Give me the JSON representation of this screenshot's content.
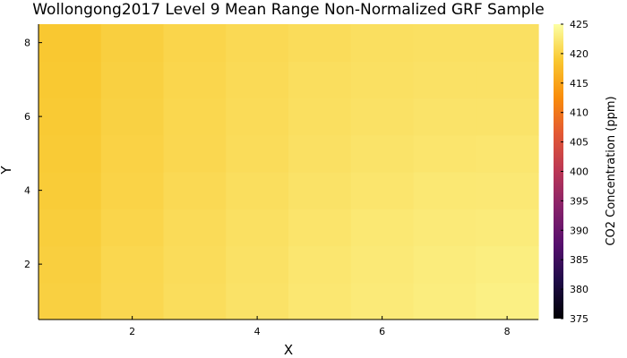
{
  "chart_data": {
    "type": "heatmap",
    "title": "Wollongong2017 Level 9 Mean Range Non-Normalized GRF Sample",
    "xlabel": "X",
    "ylabel": "Y",
    "colorbar_label": "CO2 Concentration (ppm)",
    "colormap": "inferno",
    "xlim": [
      0.5,
      8.5
    ],
    "ylim": [
      0.5,
      8.5
    ],
    "clim": [
      375,
      425
    ],
    "x_ticks": [
      2,
      4,
      6,
      8
    ],
    "y_ticks": [
      2,
      4,
      6,
      8
    ],
    "colorbar_ticks": [
      375,
      380,
      385,
      390,
      395,
      400,
      405,
      410,
      415,
      420,
      425
    ],
    "x": [
      1,
      2,
      3,
      4,
      5,
      6,
      7,
      8
    ],
    "y": [
      1,
      2,
      3,
      4,
      5,
      6,
      7,
      8
    ],
    "z": [
      [
        419.8,
        420.6,
        421.2,
        421.8,
        422.3,
        422.7,
        423.0,
        423.3
      ],
      [
        419.7,
        420.5,
        421.1,
        421.7,
        422.2,
        422.6,
        422.9,
        423.1
      ],
      [
        419.5,
        420.3,
        421.0,
        421.5,
        422.0,
        422.4,
        422.7,
        422.8
      ],
      [
        419.3,
        420.1,
        420.8,
        421.3,
        421.8,
        422.1,
        422.4,
        422.5
      ],
      [
        419.2,
        420.0,
        420.6,
        421.1,
        421.6,
        421.9,
        422.1,
        422.2
      ],
      [
        419.1,
        419.9,
        420.5,
        421.0,
        421.4,
        421.7,
        421.9,
        421.9
      ],
      [
        419.0,
        419.8,
        420.4,
        420.9,
        421.3,
        421.5,
        421.7,
        421.7
      ],
      [
        418.9,
        419.7,
        420.3,
        420.8,
        421.1,
        421.4,
        421.5,
        421.5
      ]
    ]
  }
}
